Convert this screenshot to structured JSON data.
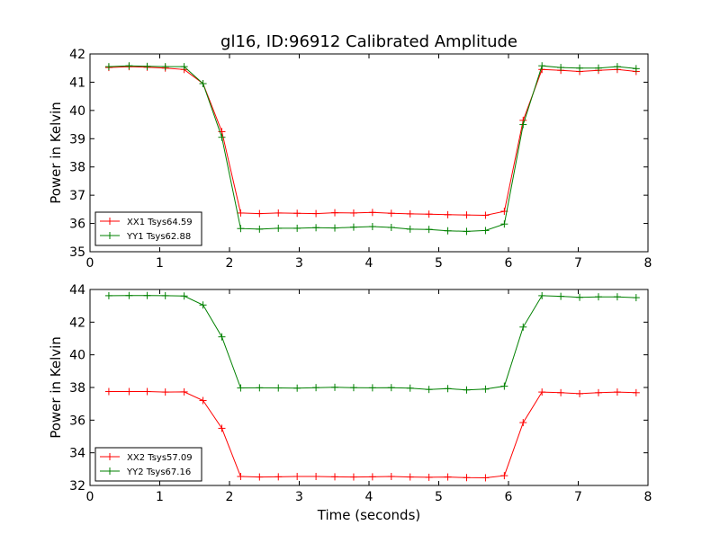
{
  "chart_data": [
    {
      "type": "line",
      "title": "gl16, ID:96912 Calibrated Amplitude",
      "xlabel": "",
      "ylabel": "Power in Kelvin",
      "xlim": [
        0,
        8
      ],
      "ylim": [
        35,
        42
      ],
      "x_ticks": [
        0,
        1,
        2,
        3,
        4,
        5,
        6,
        7,
        8
      ],
      "y_ticks": [
        35,
        36,
        37,
        38,
        39,
        40,
        41,
        42
      ],
      "legend_position": "lower-left",
      "x": [
        0.27,
        0.56,
        0.82,
        1.08,
        1.35,
        1.62,
        1.89,
        2.16,
        2.43,
        2.7,
        2.97,
        3.24,
        3.51,
        3.78,
        4.05,
        4.32,
        4.59,
        4.86,
        5.13,
        5.4,
        5.67,
        5.94,
        6.21,
        6.48,
        6.75,
        7.02,
        7.29,
        7.56,
        7.83
      ],
      "series": [
        {
          "name": "XX1 Tsys64.59",
          "color": "#ff0000",
          "values": [
            41.52,
            41.55,
            41.53,
            41.5,
            41.45,
            40.95,
            39.25,
            36.37,
            36.35,
            36.37,
            36.36,
            36.35,
            36.38,
            36.37,
            36.39,
            36.36,
            36.34,
            36.33,
            36.31,
            36.3,
            36.29,
            36.43,
            39.65,
            41.45,
            41.42,
            41.38,
            41.42,
            41.45,
            41.38
          ]
        },
        {
          "name": "YY1 Tsys62.88",
          "color": "#008000",
          "values": [
            41.55,
            41.58,
            41.56,
            41.55,
            41.55,
            40.95,
            39.05,
            35.82,
            35.8,
            35.83,
            35.83,
            35.85,
            35.84,
            35.87,
            35.89,
            35.86,
            35.8,
            35.79,
            35.74,
            35.72,
            35.75,
            35.98,
            39.5,
            41.58,
            41.52,
            41.5,
            41.5,
            41.55,
            41.48
          ]
        }
      ]
    },
    {
      "type": "line",
      "title": "",
      "xlabel": "Time (seconds)",
      "ylabel": "Power in Kelvin",
      "xlim": [
        0,
        8
      ],
      "ylim": [
        32,
        44
      ],
      "x_ticks": [
        0,
        1,
        2,
        3,
        4,
        5,
        6,
        7,
        8
      ],
      "y_ticks": [
        32,
        34,
        36,
        38,
        40,
        42,
        44
      ],
      "legend_position": "lower-left",
      "x": [
        0.27,
        0.56,
        0.82,
        1.08,
        1.35,
        1.62,
        1.89,
        2.16,
        2.43,
        2.7,
        2.97,
        3.24,
        3.51,
        3.78,
        4.05,
        4.32,
        4.59,
        4.86,
        5.13,
        5.4,
        5.67,
        5.94,
        6.21,
        6.48,
        6.75,
        7.02,
        7.29,
        7.56,
        7.83
      ],
      "series": [
        {
          "name": "XX2 Tsys57.09",
          "color": "#ff0000",
          "values": [
            37.75,
            37.75,
            37.75,
            37.72,
            37.73,
            37.2,
            35.5,
            32.55,
            32.52,
            32.53,
            32.55,
            32.55,
            32.53,
            32.52,
            32.53,
            32.55,
            32.52,
            32.5,
            32.52,
            32.48,
            32.47,
            32.6,
            35.85,
            37.72,
            37.68,
            37.62,
            37.68,
            37.72,
            37.68
          ]
        },
        {
          "name": "YY2 Tsys67.16",
          "color": "#008000",
          "values": [
            43.62,
            43.63,
            43.63,
            43.62,
            43.6,
            43.05,
            41.1,
            37.97,
            37.98,
            37.97,
            37.96,
            37.99,
            38.01,
            37.99,
            37.98,
            37.99,
            37.96,
            37.88,
            37.93,
            37.85,
            37.9,
            38.08,
            41.7,
            43.62,
            43.58,
            43.52,
            43.55,
            43.55,
            43.5
          ]
        }
      ]
    }
  ]
}
